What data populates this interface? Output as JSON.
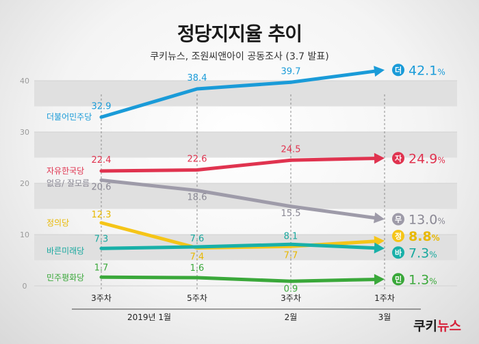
{
  "title": "정당지지율 추이",
  "subtitle": "쿠키뉴스, 조원씨앤아이 공동조사 (3.7 발표)",
  "logo": {
    "text_a": "쿠키",
    "text_b": "뉴스"
  },
  "chart_data": {
    "type": "line",
    "categories": [
      "3주차",
      "5주차",
      "3주차",
      "1주차"
    ],
    "category_groups": [
      "2019년 1월",
      "2월",
      "3월"
    ],
    "ylim": [
      0,
      40
    ],
    "yticks": [
      0,
      10,
      20,
      30,
      40
    ],
    "grid": "horizontal bands",
    "series": [
      {
        "name": "더불어민주당",
        "badge": "더",
        "color": "#1a9bd8",
        "values": [
          32.9,
          38.4,
          39.7,
          42.1
        ],
        "labels": [
          "32.9",
          "38.4",
          "39.7",
          "42.1%"
        ]
      },
      {
        "name": "자유한국당",
        "badge": "자",
        "color": "#e0334f",
        "values": [
          22.4,
          22.6,
          24.5,
          24.9
        ],
        "labels": [
          "22.4",
          "22.6",
          "24.5",
          "24.9%"
        ]
      },
      {
        "name": "없음/ 잘모름",
        "badge": "무",
        "color": "#9e9ba9",
        "values": [
          20.6,
          18.6,
          15.5,
          13.0
        ],
        "labels": [
          "20.6",
          "18.6",
          "15.5",
          "13.0%"
        ]
      },
      {
        "name": "정의당",
        "badge": "정",
        "color": "#f5c518",
        "values": [
          12.3,
          7.4,
          7.7,
          8.8
        ],
        "labels": [
          "12.3",
          "7.4",
          "7.7",
          "8.8%"
        ]
      },
      {
        "name": "바른미래당",
        "badge": "바",
        "color": "#18b0a8",
        "values": [
          7.3,
          7.6,
          8.1,
          7.3
        ],
        "labels": [
          "7.3",
          "7.6",
          "8.1",
          "7.3%"
        ]
      },
      {
        "name": "민주평화당",
        "badge": "민",
        "color": "#3aa83a",
        "values": [
          1.7,
          1.6,
          0.9,
          1.3
        ],
        "labels": [
          "1.7",
          "1.6",
          "0.9",
          "1.3%"
        ]
      }
    ]
  }
}
